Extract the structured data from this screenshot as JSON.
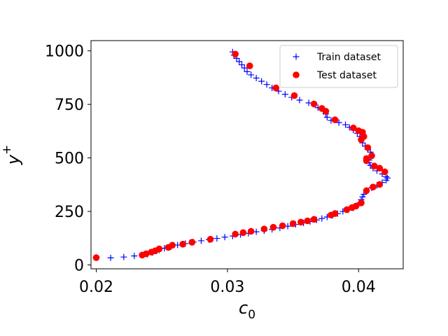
{
  "chart_data": {
    "type": "scatter",
    "xlabel": "c",
    "xlabel_sub": "0",
    "ylabel": "y",
    "ylabel_sup": "+",
    "xlim": [
      0.0196,
      0.0434
    ],
    "ylim": [
      -18,
      1048
    ],
    "xticks": [
      {
        "value": 0.02,
        "label": "0.02"
      },
      {
        "value": 0.03,
        "label": "0.03"
      },
      {
        "value": 0.04,
        "label": "0.04"
      }
    ],
    "yticks": [
      {
        "value": 0,
        "label": "0"
      },
      {
        "value": 250,
        "label": "250"
      },
      {
        "value": 500,
        "label": "500"
      },
      {
        "value": 750,
        "label": "750"
      },
      {
        "value": 1000,
        "label": "1000"
      }
    ],
    "grid": false,
    "legend_position": "top-right",
    "series": [
      {
        "name": "Train dataset",
        "marker": "plus",
        "color": "#0000ff",
        "points": [
          [
            0.0211,
            33
          ],
          [
            0.0221,
            37
          ],
          [
            0.0229,
            42
          ],
          [
            0.0239,
            50
          ],
          [
            0.0243,
            58
          ],
          [
            0.0248,
            70
          ],
          [
            0.0252,
            78
          ],
          [
            0.0257,
            85
          ],
          [
            0.0262,
            93
          ],
          [
            0.0268,
            100
          ],
          [
            0.0274,
            107
          ],
          [
            0.028,
            113
          ],
          [
            0.0286,
            118
          ],
          [
            0.0292,
            124
          ],
          [
            0.0298,
            130
          ],
          [
            0.0304,
            135
          ],
          [
            0.031,
            142
          ],
          [
            0.0316,
            148
          ],
          [
            0.0322,
            155
          ],
          [
            0.0328,
            160
          ],
          [
            0.0334,
            166
          ],
          [
            0.034,
            173
          ],
          [
            0.0346,
            181
          ],
          [
            0.0352,
            189
          ],
          [
            0.0358,
            196
          ],
          [
            0.0363,
            203
          ],
          [
            0.0368,
            210
          ],
          [
            0.0372,
            217
          ],
          [
            0.0376,
            224
          ],
          [
            0.038,
            231
          ],
          [
            0.0384,
            240
          ],
          [
            0.0388,
            250
          ],
          [
            0.0392,
            258
          ],
          [
            0.0396,
            266
          ],
          [
            0.0399,
            277
          ],
          [
            0.0401,
            290
          ],
          [
            0.0402,
            305
          ],
          [
            0.0403,
            318
          ],
          [
            0.0404,
            330
          ],
          [
            0.0406,
            345
          ],
          [
            0.041,
            360
          ],
          [
            0.0414,
            372
          ],
          [
            0.0418,
            385
          ],
          [
            0.0421,
            396
          ],
          [
            0.0422,
            406
          ],
          [
            0.0421,
            412
          ],
          [
            0.0418,
            425
          ],
          [
            0.0414,
            440
          ],
          [
            0.0411,
            452
          ],
          [
            0.0409,
            465
          ],
          [
            0.0408,
            478
          ],
          [
            0.0408,
            490
          ],
          [
            0.0409,
            503
          ],
          [
            0.041,
            515
          ],
          [
            0.0409,
            527
          ],
          [
            0.0407,
            540
          ],
          [
            0.0405,
            555
          ],
          [
            0.0403,
            570
          ],
          [
            0.0402,
            585
          ],
          [
            0.0401,
            600
          ],
          [
            0.0399,
            615
          ],
          [
            0.0396,
            630
          ],
          [
            0.0393,
            643
          ],
          [
            0.039,
            655
          ],
          [
            0.0385,
            665
          ],
          [
            0.0379,
            675
          ],
          [
            0.0376,
            690
          ],
          [
            0.0375,
            705
          ],
          [
            0.0373,
            720
          ],
          [
            0.0369,
            735
          ],
          [
            0.0362,
            757
          ],
          [
            0.0355,
            770
          ],
          [
            0.0349,
            783
          ],
          [
            0.0344,
            797
          ],
          [
            0.0339,
            812
          ],
          [
            0.0334,
            827
          ],
          [
            0.033,
            843
          ],
          [
            0.0326,
            858
          ],
          [
            0.0322,
            873
          ],
          [
            0.0318,
            888
          ],
          [
            0.0315,
            903
          ],
          [
            0.0313,
            920
          ],
          [
            0.0311,
            935
          ],
          [
            0.0309,
            950
          ],
          [
            0.0307,
            965
          ],
          [
            0.0305,
            980
          ],
          [
            0.0304,
            995
          ]
        ]
      },
      {
        "name": "Test dataset",
        "marker": "circle",
        "color": "#ff0000",
        "points": [
          [
            0.02,
            34
          ],
          [
            0.0235,
            46
          ],
          [
            0.0238,
            52
          ],
          [
            0.0242,
            60
          ],
          [
            0.0245,
            66
          ],
          [
            0.0248,
            75
          ],
          [
            0.0255,
            82
          ],
          [
            0.0258,
            92
          ],
          [
            0.0266,
            97
          ],
          [
            0.0273,
            106
          ],
          [
            0.0287,
            120
          ],
          [
            0.0306,
            144
          ],
          [
            0.0312,
            151
          ],
          [
            0.0318,
            157
          ],
          [
            0.0328,
            168
          ],
          [
            0.0335,
            176
          ],
          [
            0.0342,
            183
          ],
          [
            0.035,
            193
          ],
          [
            0.0356,
            200
          ],
          [
            0.0361,
            206
          ],
          [
            0.0366,
            213
          ],
          [
            0.0379,
            233
          ],
          [
            0.0382,
            240
          ],
          [
            0.0391,
            258
          ],
          [
            0.0395,
            268
          ],
          [
            0.0398,
            275
          ],
          [
            0.0402,
            290
          ],
          [
            0.0406,
            347
          ],
          [
            0.0411,
            364
          ],
          [
            0.0416,
            376
          ],
          [
            0.042,
            435
          ],
          [
            0.0416,
            452
          ],
          [
            0.0412,
            462
          ],
          [
            0.0406,
            487
          ],
          [
            0.0406,
            497
          ],
          [
            0.041,
            510
          ],
          [
            0.0407,
            548
          ],
          [
            0.0402,
            585
          ],
          [
            0.0404,
            600
          ],
          [
            0.0403,
            620
          ],
          [
            0.04,
            627
          ],
          [
            0.0396,
            640
          ],
          [
            0.0382,
            678
          ],
          [
            0.0375,
            718
          ],
          [
            0.0372,
            731
          ],
          [
            0.0366,
            752
          ],
          [
            0.0351,
            791
          ],
          [
            0.0337,
            827
          ],
          [
            0.0317,
            930
          ],
          [
            0.0306,
            985
          ]
        ]
      }
    ]
  }
}
